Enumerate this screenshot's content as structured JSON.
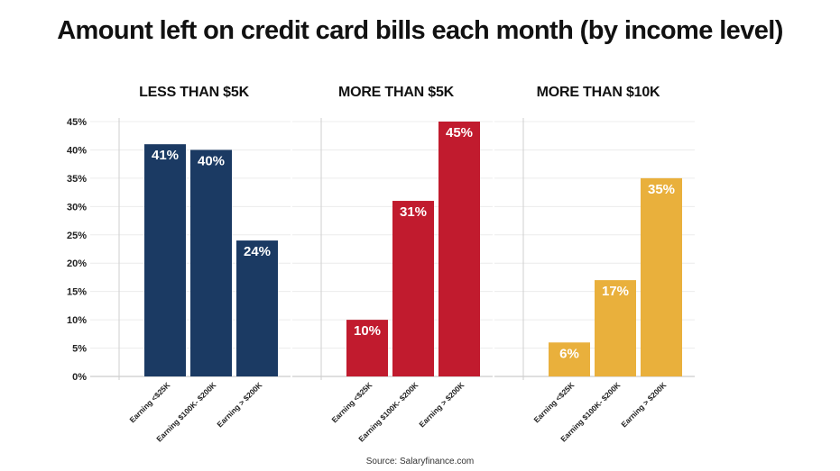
{
  "title": "Amount left on credit card bills each month (by income level)",
  "source": "Source: Salaryfinance.com",
  "chart_data": [
    {
      "type": "bar",
      "title": "LESS THAN $5K",
      "categories": [
        "Earning <$25K",
        "Earning $100K- $200K",
        "Earning > $200K"
      ],
      "values": [
        41,
        40,
        24
      ],
      "labels": [
        "41%",
        "40%",
        "24%"
      ],
      "color": "#1b3a63",
      "ylim": [
        0,
        45
      ],
      "yticks": [
        "0%",
        "5%",
        "10%",
        "15%",
        "20%",
        "25%",
        "30%",
        "35%",
        "40%",
        "45%"
      ],
      "grid": true
    },
    {
      "type": "bar",
      "title": "MORE THAN $5K",
      "categories": [
        "Earning <$25K",
        "Earning $100K- $200K",
        "Earning > $200K"
      ],
      "values": [
        10,
        31,
        45
      ],
      "labels": [
        "10%",
        "31%",
        "45%"
      ],
      "color": "#c11b2e",
      "ylim": [
        0,
        45
      ],
      "grid": true
    },
    {
      "type": "bar",
      "title": "MORE THAN $10K",
      "categories": [
        "Earning <$25K",
        "Earning $100K- $200K",
        "Earning > $200K"
      ],
      "values": [
        6,
        17,
        35
      ],
      "labels": [
        "6%",
        "17%",
        "35%"
      ],
      "color": "#e9b03c",
      "ylim": [
        0,
        45
      ],
      "grid": true
    }
  ]
}
